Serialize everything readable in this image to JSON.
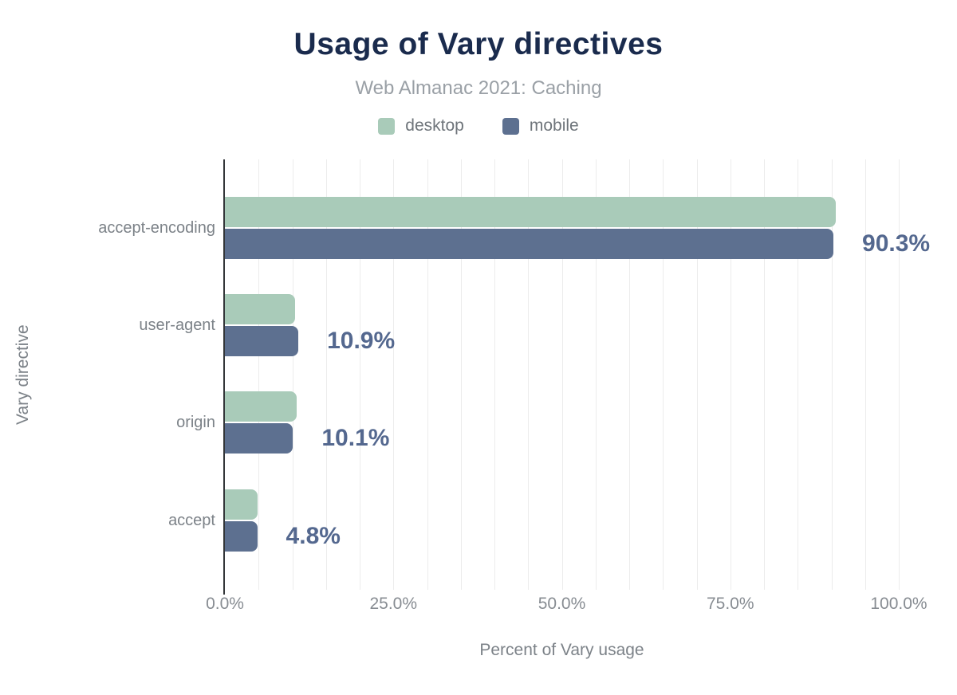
{
  "header": {
    "title": "Usage of Vary directives",
    "subtitle": "Web Almanac 2021: Caching"
  },
  "legend": [
    {
      "label": "desktop",
      "color": "#a9cbb9"
    },
    {
      "label": "mobile",
      "color": "#5d7090"
    }
  ],
  "axes": {
    "y_title": "Vary directive",
    "x_title": "Percent of Vary usage",
    "x_ticks": [
      "0.0%",
      "25.0%",
      "50.0%",
      "75.0%",
      "100.0%"
    ],
    "x_tick_values": [
      0,
      25,
      50,
      75,
      100
    ]
  },
  "chart_data": {
    "type": "bar",
    "orientation": "horizontal",
    "title": "Usage of Vary directives",
    "subtitle": "Web Almanac 2021: Caching",
    "xlabel": "Percent of Vary usage",
    "ylabel": "Vary directive",
    "xlim": [
      0,
      100
    ],
    "grid": "vertical, minor every 5%",
    "legend_position": "top",
    "categories": [
      "accept-encoding",
      "user-agent",
      "origin",
      "accept"
    ],
    "series": [
      {
        "name": "desktop",
        "color": "#a9cbb9",
        "values": [
          90.6,
          10.4,
          10.7,
          4.9
        ]
      },
      {
        "name": "mobile",
        "color": "#5d7090",
        "values": [
          90.3,
          10.9,
          10.1,
          4.8
        ]
      }
    ],
    "annotation_series": "mobile",
    "annotations": [
      "90.3%",
      "10.9%",
      "10.1%",
      "4.8%"
    ],
    "annotation_color": "#54688f"
  }
}
